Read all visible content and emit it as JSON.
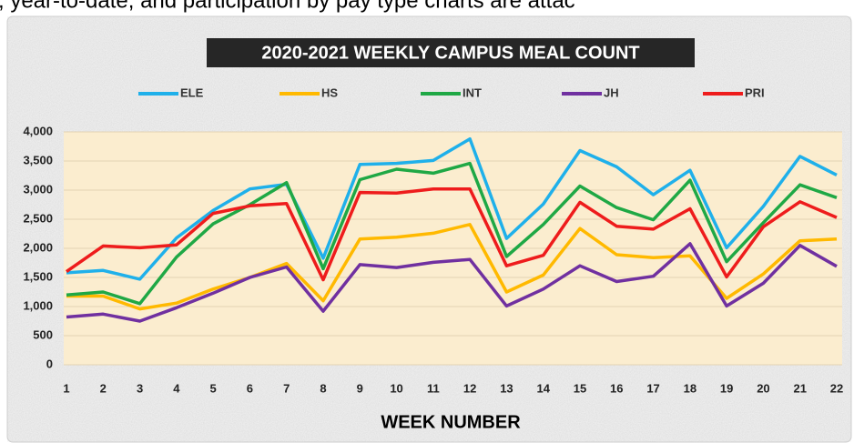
{
  "caption": ", year-to-date, and participation by pay type charts are attac",
  "chart_data": {
    "type": "line",
    "title": "2020-2021 WEEKLY CAMPUS MEAL COUNT",
    "x_label": "WEEK NUMBER",
    "categories": [
      "1",
      "2",
      "3",
      "4",
      "5",
      "6",
      "7",
      "8",
      "9",
      "10",
      "11",
      "12",
      "13",
      "14",
      "15",
      "16",
      "17",
      "18",
      "19",
      "20",
      "21",
      "22"
    ],
    "series": [
      {
        "name": "ELE",
        "color": "#1fb0ea",
        "values": [
          1580,
          1620,
          1470,
          2180,
          2650,
          3020,
          3100,
          1830,
          3440,
          3460,
          3510,
          3880,
          2170,
          2760,
          3680,
          3400,
          2920,
          3340,
          2010,
          2720,
          3580,
          3260
        ]
      },
      {
        "name": "HS",
        "color": "#ffb900",
        "values": [
          1180,
          1180,
          960,
          1060,
          1300,
          1500,
          1740,
          1100,
          2160,
          2190,
          2260,
          2410,
          1250,
          1540,
          2340,
          1890,
          1840,
          1870,
          1140,
          1560,
          2130,
          2160
        ]
      },
      {
        "name": "INT",
        "color": "#1fa845",
        "values": [
          1200,
          1250,
          1050,
          1850,
          2420,
          2750,
          3130,
          1650,
          3180,
          3360,
          3290,
          3460,
          1860,
          2410,
          3070,
          2700,
          2490,
          3170,
          1770,
          2440,
          3090,
          2870
        ]
      },
      {
        "name": "JH",
        "color": "#7030a0",
        "values": [
          820,
          870,
          750,
          980,
          1230,
          1500,
          1680,
          920,
          1720,
          1670,
          1760,
          1810,
          1010,
          1300,
          1700,
          1430,
          1520,
          2080,
          1010,
          1400,
          2050,
          1690
        ]
      },
      {
        "name": "PRI",
        "color": "#ee1c1c",
        "values": [
          1600,
          2040,
          2010,
          2060,
          2600,
          2730,
          2770,
          1460,
          2960,
          2950,
          3020,
          3020,
          1700,
          1880,
          2790,
          2380,
          2330,
          2680,
          1510,
          2370,
          2800,
          2530
        ]
      }
    ],
    "ylim": [
      0,
      4000
    ],
    "yticks": [
      0,
      500,
      {
        "value": 1000,
        "label": "1,000"
      },
      {
        "value": 1500,
        "label": "1,500"
      },
      {
        "value": 2000,
        "label": "2,000"
      },
      {
        "value": 2500,
        "label": "2,500"
      },
      {
        "value": 3000,
        "label": "3,000"
      },
      {
        "value": 3500,
        "label": "3,500"
      },
      {
        "value": 4000,
        "label": "4,000"
      }
    ],
    "grid": true,
    "legend": "top"
  }
}
